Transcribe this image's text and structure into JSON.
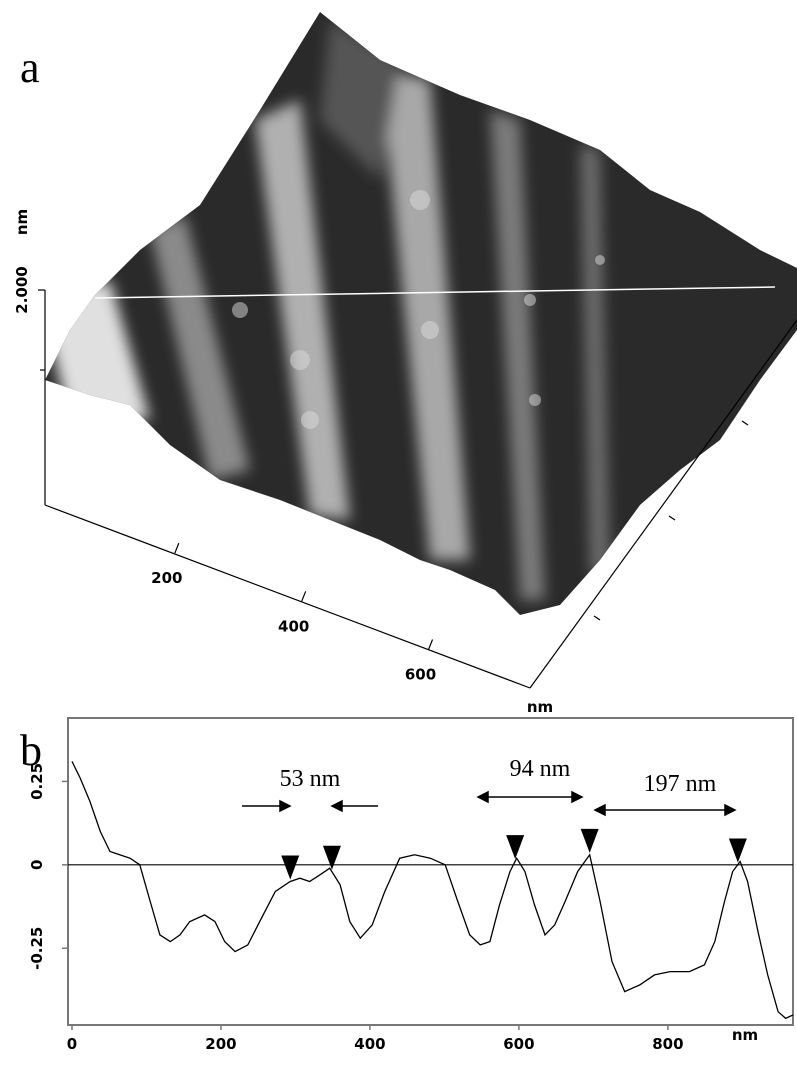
{
  "chart_data": [
    {
      "type": "surface3d",
      "panel_label": "a",
      "xlim": [
        0,
        760
      ],
      "xticks": [
        200,
        400,
        600
      ],
      "x_unit": "nm",
      "zlim": [
        0,
        2
      ],
      "zticks": [
        {
          "value": 2,
          "label": "2.000"
        }
      ],
      "z_unit": "nm"
    },
    {
      "type": "line",
      "panel_label": "b",
      "x": [
        0,
        11,
        24,
        38,
        51,
        64,
        78,
        91,
        105,
        118,
        132,
        145,
        158,
        178,
        192,
        205,
        219,
        236,
        252,
        273,
        293,
        306,
        319,
        333,
        346,
        360,
        373,
        387,
        403,
        420,
        440,
        460,
        481,
        501,
        518,
        534,
        548,
        561,
        574,
        588,
        597,
        608,
        621,
        635,
        648,
        662,
        679,
        695,
        709,
        725,
        742,
        762,
        782,
        803,
        829,
        849,
        863,
        876,
        887,
        897,
        907,
        921,
        934,
        948,
        958,
        968
      ],
      "values": [
        0.31,
        0.26,
        0.19,
        0.1,
        0.04,
        0.03,
        0.02,
        0.0,
        -0.11,
        -0.21,
        -0.23,
        -0.21,
        -0.17,
        -0.15,
        -0.17,
        -0.23,
        -0.26,
        -0.24,
        -0.17,
        -0.08,
        -0.05,
        -0.04,
        -0.05,
        -0.03,
        -0.01,
        -0.06,
        -0.17,
        -0.22,
        -0.18,
        -0.08,
        0.02,
        0.03,
        0.02,
        0.0,
        -0.11,
        -0.21,
        -0.24,
        -0.23,
        -0.12,
        -0.02,
        0.02,
        -0.02,
        -0.12,
        -0.21,
        -0.18,
        -0.11,
        -0.02,
        0.03,
        -0.11,
        -0.29,
        -0.38,
        -0.36,
        -0.33,
        -0.32,
        -0.32,
        -0.3,
        -0.23,
        -0.11,
        -0.02,
        0.01,
        -0.05,
        -0.2,
        -0.33,
        -0.44,
        -0.46,
        -0.45
      ],
      "color": "#000000",
      "xlim": [
        0,
        968
      ],
      "xticks": [
        0,
        200,
        400,
        600,
        800
      ],
      "x_unit": "nm",
      "ylim": [
        -0.48,
        0.44
      ],
      "yticks": [
        0.25,
        0,
        -0.25
      ],
      "markers": [
        293,
        349,
        595,
        695,
        894
      ],
      "annotations": [
        "53 nm",
        "94 nm",
        "197 nm"
      ]
    }
  ]
}
